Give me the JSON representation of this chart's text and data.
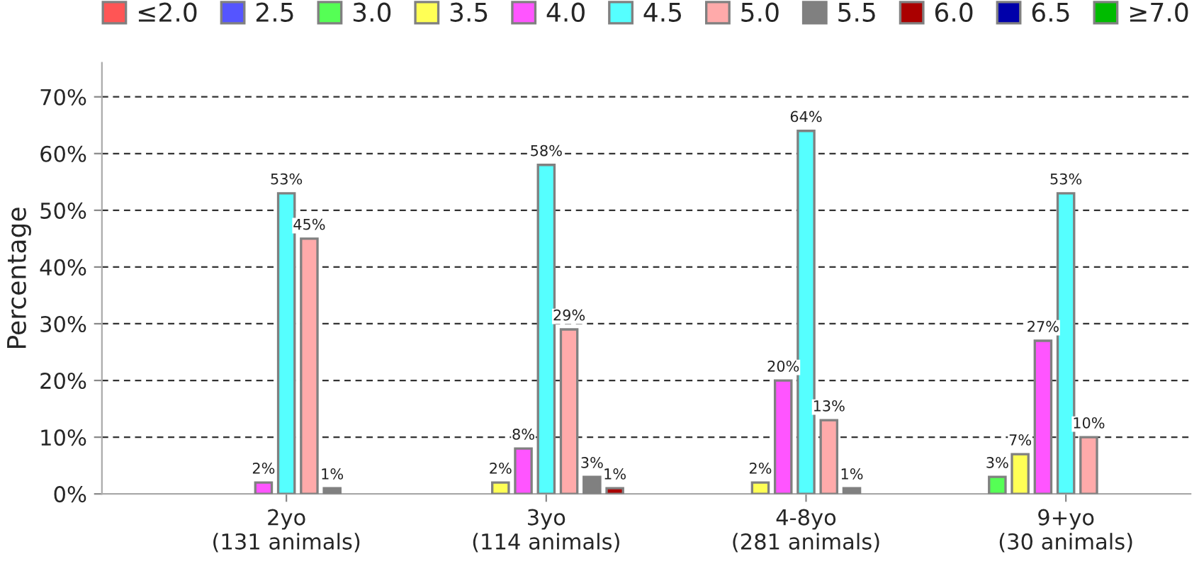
{
  "chart_data": {
    "type": "bar",
    "ylabel": "Percentage",
    "categories": [
      "2yo\n(131 animals)",
      "3yo\n(114 animals)",
      "4-8yo\n(281 animals)",
      "9+yo\n(30 animals)"
    ],
    "ylim": [
      0,
      76
    ],
    "yticks": [
      {
        "value": 0,
        "label": "0%"
      },
      {
        "value": 10,
        "label": "10%"
      },
      {
        "value": 20,
        "label": "20%"
      },
      {
        "value": 30,
        "label": "30%"
      },
      {
        "value": 40,
        "label": "40%"
      },
      {
        "value": 50,
        "label": "50%"
      },
      {
        "value": 60,
        "label": "60%"
      },
      {
        "value": 70,
        "label": "70%"
      }
    ],
    "grid": "y",
    "legend": "top",
    "series": [
      {
        "name": "≤2.0",
        "color": "#ff5555",
        "values": [
          null,
          null,
          null,
          null
        ],
        "value_labels": [
          null,
          null,
          null,
          null
        ]
      },
      {
        "name": "2.5",
        "color": "#5555ff",
        "values": [
          null,
          null,
          null,
          null
        ],
        "value_labels": [
          null,
          null,
          null,
          null
        ]
      },
      {
        "name": "3.0",
        "color": "#55ff55",
        "values": [
          null,
          null,
          null,
          3
        ],
        "value_labels": [
          null,
          null,
          null,
          "3%"
        ]
      },
      {
        "name": "3.5",
        "color": "#ffff55",
        "values": [
          null,
          2,
          2,
          7
        ],
        "value_labels": [
          null,
          "2%",
          "2%",
          "7%"
        ]
      },
      {
        "name": "4.0",
        "color": "#ff55ff",
        "values": [
          2,
          8,
          20,
          27
        ],
        "value_labels": [
          "2%",
          "8%",
          "20%",
          "27%"
        ]
      },
      {
        "name": "4.5",
        "color": "#55ffff",
        "values": [
          53,
          58,
          64,
          53
        ],
        "value_labels": [
          "53%",
          "58%",
          "64%",
          "53%"
        ]
      },
      {
        "name": "5.0",
        "color": "#ffaaaa",
        "values": [
          45,
          29,
          13,
          10
        ],
        "value_labels": [
          "45%",
          "29%",
          "13%",
          "10%"
        ]
      },
      {
        "name": "5.5",
        "color": "#808080",
        "values": [
          1,
          3,
          1,
          null
        ],
        "value_labels": [
          "1%",
          "3%",
          "1%",
          null
        ]
      },
      {
        "name": "6.0",
        "color": "#aa0000",
        "values": [
          null,
          1,
          null,
          null
        ],
        "value_labels": [
          null,
          "1%",
          null,
          null
        ]
      },
      {
        "name": "6.5",
        "color": "#0000aa",
        "values": [
          null,
          null,
          null,
          null
        ],
        "value_labels": [
          null,
          null,
          null,
          null
        ]
      },
      {
        "name": "≥7.0",
        "color": "#00bb00",
        "values": [
          null,
          null,
          null,
          null
        ],
        "value_labels": [
          null,
          null,
          null,
          null
        ]
      }
    ]
  }
}
